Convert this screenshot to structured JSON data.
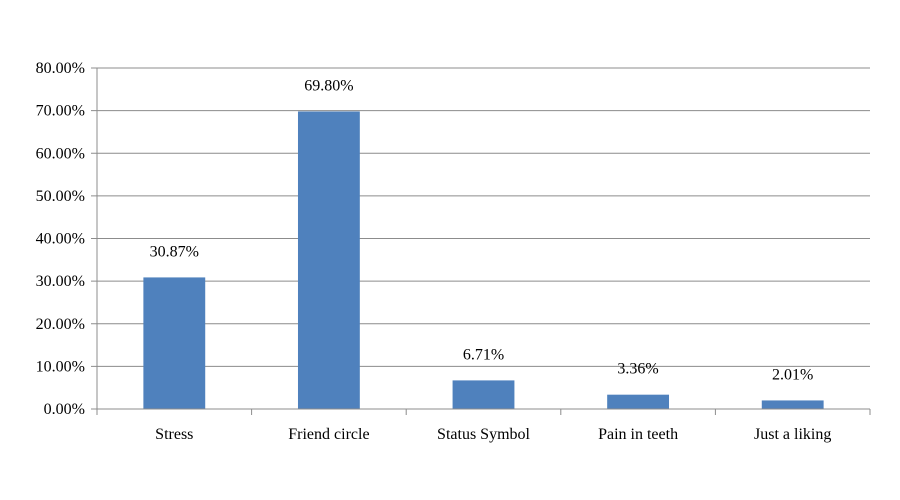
{
  "chart_data": {
    "type": "bar",
    "categories": [
      "Stress",
      "Friend circle",
      "Status Symbol",
      "Pain in teeth",
      "Just a liking"
    ],
    "values": [
      30.87,
      69.8,
      6.71,
      3.36,
      2.01
    ],
    "data_labels": [
      "30.87%",
      "69.80%",
      "6.71%",
      "3.36%",
      "2.01%"
    ],
    "y_ticks": [
      "0.00%",
      "10.00%",
      "20.00%",
      "30.00%",
      "40.00%",
      "50.00%",
      "60.00%",
      "70.00%",
      "80.00%"
    ],
    "ylim": [
      0,
      80
    ],
    "grid": true,
    "legend": "none",
    "bar_color": "#4f81bd"
  }
}
